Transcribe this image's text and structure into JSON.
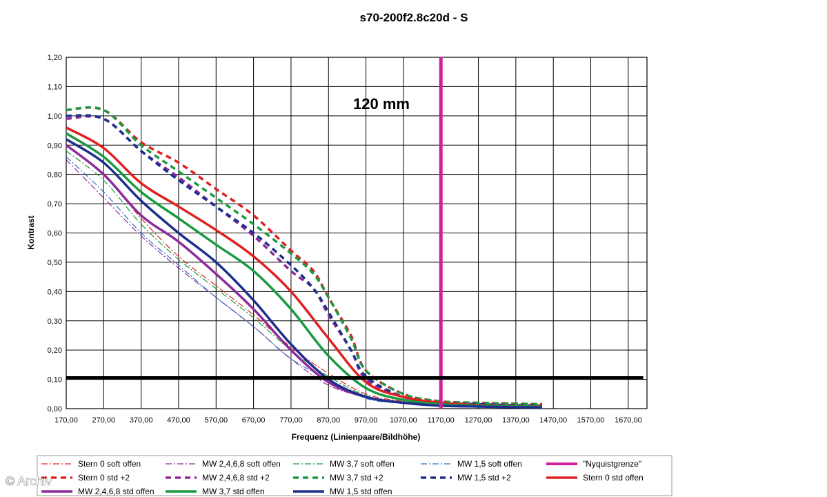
{
  "chart_data": {
    "type": "line",
    "title": "s70-200f2.8c20d - S",
    "annotation": "120 mm",
    "xlabel": "Frequenz (Linienpaare/Bildhöhe)",
    "ylabel": "Kontrast",
    "xlim": [
      170,
      1720
    ],
    "ylim": [
      0,
      1.2
    ],
    "x_ticks": [
      "170,00",
      "270,00",
      "370,00",
      "470,00",
      "570,00",
      "670,00",
      "770,00",
      "870,00",
      "970,00",
      "1070,00",
      "1170,00",
      "1270,00",
      "1370,00",
      "1470,00",
      "1570,00",
      "1670,00"
    ],
    "y_ticks": [
      "0,00",
      "0,10",
      "0,20",
      "0,30",
      "0,40",
      "0,50",
      "0,60",
      "0,70",
      "0,80",
      "0,90",
      "1,00",
      "1,10",
      "1,20"
    ],
    "x_vertical_grid": [
      170,
      270,
      370,
      470,
      570,
      670,
      770,
      870,
      970,
      1070,
      1170,
      1270,
      1370,
      1470,
      1570,
      1670,
      1720
    ],
    "grid": true,
    "legend_position": "bottom",
    "nyquist_x": 1170,
    "threshold_y": 0.105,
    "series": [
      {
        "name": "Stern 0 soft offen",
        "color": "#e02020",
        "style": "dashdot",
        "width": 1.2,
        "x": [
          170,
          270,
          370,
          470,
          570,
          670,
          770,
          870,
          970,
          1070,
          1170,
          1270,
          1370,
          1440
        ],
        "y": [
          0.9,
          0.8,
          0.65,
          0.52,
          0.42,
          0.32,
          0.21,
          0.12,
          0.05,
          0.025,
          0.015,
          0.01,
          0.008,
          0.006
        ]
      },
      {
        "name": "MW 2,4,6,8 soft offen",
        "color": "#8e2a9a",
        "style": "dashdot",
        "width": 1.2,
        "x": [
          170,
          270,
          370,
          470,
          570,
          670,
          770,
          870,
          970,
          1070,
          1170,
          1270,
          1370,
          1440
        ],
        "y": [
          0.85,
          0.72,
          0.59,
          0.48,
          0.38,
          0.28,
          0.17,
          0.08,
          0.04,
          0.02,
          0.012,
          0.008,
          0.006,
          0.005
        ]
      },
      {
        "name": "MW 3,7 soft offen",
        "color": "#1a9a40",
        "style": "dashdot",
        "width": 1.2,
        "x": [
          170,
          270,
          370,
          470,
          570,
          670,
          770,
          870,
          970,
          1070,
          1170,
          1270,
          1370,
          1440
        ],
        "y": [
          0.88,
          0.78,
          0.63,
          0.51,
          0.41,
          0.31,
          0.2,
          0.11,
          0.045,
          0.022,
          0.013,
          0.009,
          0.007,
          0.005
        ]
      },
      {
        "name": "MW 1,5 soft offen",
        "color": "#2a70c0",
        "style": "dashdot",
        "width": 1.2,
        "x": [
          170,
          270,
          370,
          470,
          570,
          670,
          770,
          870,
          970,
          1070,
          1170,
          1270,
          1370,
          1440
        ],
        "y": [
          0.86,
          0.74,
          0.6,
          0.49,
          0.38,
          0.28,
          0.17,
          0.1,
          0.035,
          0.018,
          0.01,
          0.007,
          0.005,
          0.004
        ]
      },
      {
        "name": "\"Nyquistgrenze\"",
        "color": "#d0209a",
        "style": "solid",
        "width": 5,
        "x": [
          1170,
          1170
        ],
        "y": [
          0,
          1.2
        ]
      },
      {
        "name": "Stern 0 std +2",
        "color": "#e02020",
        "style": "dash",
        "width": 3.5,
        "x": [
          170,
          270,
          370,
          470,
          570,
          670,
          770,
          830,
          870,
          930,
          970,
          1070,
          1170,
          1270,
          1370,
          1440
        ],
        "y": [
          1.02,
          1.02,
          0.91,
          0.84,
          0.75,
          0.66,
          0.54,
          0.47,
          0.38,
          0.25,
          0.13,
          0.05,
          0.025,
          0.02,
          0.017,
          0.015
        ]
      },
      {
        "name": "MW 2,4,6,8 std +2",
        "color": "#8e2a9a",
        "style": "dash",
        "width": 3.5,
        "x": [
          170,
          270,
          370,
          470,
          570,
          670,
          770,
          830,
          870,
          930,
          970,
          1070,
          1170,
          1270,
          1370,
          1440
        ],
        "y": [
          0.99,
          0.99,
          0.88,
          0.79,
          0.69,
          0.59,
          0.47,
          0.41,
          0.32,
          0.2,
          0.1,
          0.04,
          0.02,
          0.015,
          0.012,
          0.01
        ]
      },
      {
        "name": "MW 3,7 std +2",
        "color": "#1a9a40",
        "style": "dash",
        "width": 3.5,
        "x": [
          170,
          270,
          370,
          470,
          570,
          670,
          770,
          830,
          870,
          930,
          970,
          1070,
          1170,
          1270,
          1370,
          1440
        ],
        "y": [
          1.02,
          1.02,
          0.9,
          0.81,
          0.72,
          0.63,
          0.53,
          0.46,
          0.38,
          0.24,
          0.13,
          0.05,
          0.025,
          0.02,
          0.017,
          0.015
        ]
      },
      {
        "name": "MW 1,5 std +2",
        "color": "#1c2f8c",
        "style": "dash",
        "width": 3.5,
        "x": [
          170,
          270,
          370,
          470,
          570,
          670,
          770,
          830,
          870,
          930,
          970,
          1070,
          1170,
          1270,
          1370,
          1440
        ],
        "y": [
          1.0,
          0.99,
          0.88,
          0.78,
          0.69,
          0.6,
          0.49,
          0.41,
          0.33,
          0.2,
          0.11,
          0.04,
          0.02,
          0.015,
          0.012,
          0.01
        ]
      },
      {
        "name": "Stern 0 std offen",
        "color": "#e02020",
        "style": "solid",
        "width": 3.5,
        "x": [
          170,
          270,
          370,
          470,
          570,
          670,
          770,
          870,
          970,
          1070,
          1170,
          1270,
          1370,
          1440
        ],
        "y": [
          0.96,
          0.89,
          0.77,
          0.69,
          0.61,
          0.52,
          0.4,
          0.24,
          0.09,
          0.04,
          0.02,
          0.012,
          0.009,
          0.007
        ]
      },
      {
        "name": "MW 2,4,6,8 std offen",
        "color": "#8e2a9a",
        "style": "solid",
        "width": 3.5,
        "x": [
          170,
          270,
          370,
          470,
          570,
          670,
          770,
          870,
          970,
          1070,
          1170,
          1270,
          1370,
          1440
        ],
        "y": [
          0.9,
          0.8,
          0.66,
          0.57,
          0.46,
          0.34,
          0.2,
          0.09,
          0.04,
          0.02,
          0.012,
          0.008,
          0.006,
          0.005
        ]
      },
      {
        "name": "MW 3,7 std offen",
        "color": "#1a9a40",
        "style": "solid",
        "width": 3.5,
        "x": [
          170,
          270,
          370,
          470,
          570,
          670,
          770,
          870,
          970,
          1070,
          1170,
          1270,
          1370,
          1440
        ],
        "y": [
          0.94,
          0.86,
          0.74,
          0.65,
          0.56,
          0.47,
          0.34,
          0.18,
          0.07,
          0.03,
          0.015,
          0.01,
          0.008,
          0.006
        ]
      },
      {
        "name": "MW 1,5 std offen",
        "color": "#1c2f8c",
        "style": "solid",
        "width": 3.5,
        "x": [
          170,
          270,
          370,
          470,
          570,
          670,
          770,
          870,
          970,
          1070,
          1170,
          1270,
          1370,
          1440
        ],
        "y": [
          0.92,
          0.84,
          0.71,
          0.6,
          0.5,
          0.37,
          0.22,
          0.1,
          0.04,
          0.02,
          0.01,
          0.007,
          0.005,
          0.004
        ]
      },
      {
        "name": "",
        "color": "#000000",
        "style": "solid",
        "width": 5,
        "x": [
          170,
          1710
        ],
        "y": [
          0.105,
          0.105
        ]
      }
    ]
  },
  "watermark": "© Archiv"
}
